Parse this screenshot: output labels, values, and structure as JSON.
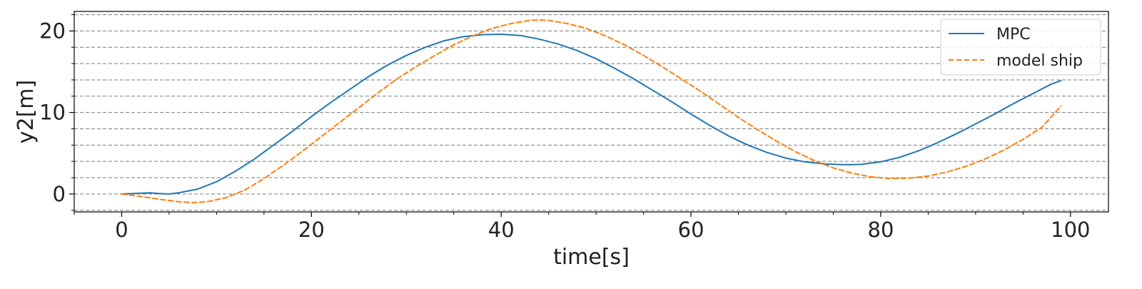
{
  "chart_data": {
    "type": "line",
    "title": "",
    "xlabel": "time[s]",
    "ylabel": "y2[m]",
    "xlim": [
      -5,
      104
    ],
    "ylim": [
      -2.2,
      22.4
    ],
    "x_ticks": [
      0,
      20,
      40,
      60,
      80,
      100
    ],
    "x_minor_ticks": [
      -5,
      5,
      10,
      15,
      25,
      30,
      35,
      45,
      50,
      55,
      65,
      70,
      75,
      85,
      90,
      95
    ],
    "y_ticks": [
      0,
      10,
      20
    ],
    "y_minor_ticks": [
      -2,
      2,
      4,
      6,
      8,
      12,
      14,
      16,
      18,
      22
    ],
    "grid": "horizontal dashed (major and minor)",
    "legend_position": "top-right",
    "series": [
      {
        "name": "MPC",
        "color": "#1f77b4",
        "style": "solid",
        "x": [
          0,
          2,
          3,
          4,
          5,
          6,
          8,
          10,
          12,
          14,
          16,
          18,
          20,
          22,
          24,
          26,
          28,
          30,
          32,
          34,
          36,
          38,
          40,
          42,
          44,
          46,
          48,
          50,
          52,
          54,
          56,
          58,
          60,
          62,
          64,
          66,
          68,
          70,
          72,
          74,
          76,
          77,
          78,
          80,
          82,
          84,
          86,
          88,
          90,
          92,
          94,
          96,
          98,
          99
        ],
        "y": [
          0,
          0.1,
          0.15,
          0.05,
          0,
          0.15,
          0.6,
          1.5,
          2.8,
          4.3,
          6.0,
          7.7,
          9.5,
          11.2,
          12.8,
          14.4,
          15.8,
          17.0,
          18.0,
          18.8,
          19.3,
          19.55,
          19.6,
          19.45,
          19.0,
          18.4,
          17.6,
          16.6,
          15.4,
          14.1,
          12.7,
          11.3,
          9.8,
          8.4,
          7.1,
          6.0,
          5.1,
          4.4,
          3.95,
          3.7,
          3.6,
          3.6,
          3.65,
          3.95,
          4.5,
          5.3,
          6.3,
          7.4,
          8.6,
          9.8,
          11.1,
          12.3,
          13.5,
          13.9
        ]
      },
      {
        "name": "model ship",
        "color": "#ff7f0e",
        "style": "dashed",
        "x": [
          0,
          2,
          4,
          6,
          7.5,
          9,
          11,
          13,
          15,
          17,
          19,
          21,
          23,
          25,
          27,
          29,
          31,
          33,
          35,
          37,
          39,
          41,
          43,
          44,
          45,
          47,
          49,
          51,
          53,
          55,
          57,
          59,
          61,
          63,
          65,
          67,
          69,
          71,
          73,
          75,
          77,
          79,
          81,
          83,
          85,
          87,
          89,
          91,
          93,
          95,
          97,
          99
        ],
        "y": [
          0,
          -0.3,
          -0.65,
          -0.95,
          -1.05,
          -0.95,
          -0.45,
          0.5,
          1.9,
          3.5,
          5.2,
          7.0,
          8.8,
          10.6,
          12.4,
          14.1,
          15.6,
          17.0,
          18.3,
          19.4,
          20.3,
          20.9,
          21.3,
          21.35,
          21.3,
          20.9,
          20.3,
          19.4,
          18.3,
          17.0,
          15.6,
          14.1,
          12.6,
          11.0,
          9.4,
          7.9,
          6.5,
          5.2,
          4.1,
          3.2,
          2.55,
          2.1,
          1.9,
          1.95,
          2.2,
          2.7,
          3.4,
          4.3,
          5.4,
          6.7,
          8.2,
          10.8
        ]
      }
    ]
  }
}
